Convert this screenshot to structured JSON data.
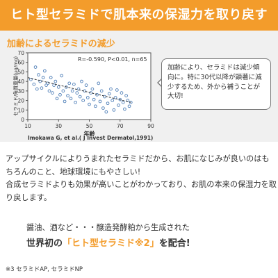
{
  "banner": {
    "title": "ヒト型セラミドで肌本来の保湿力を取り戻す"
  },
  "chart_section": {
    "title": "加齢によるセラミドの減少"
  },
  "chart_data": {
    "type": "scatter",
    "ylabel": "セラミド/角質重量(μg/mg)",
    "xlabel": "年齢",
    "x_ticks": [
      10,
      30,
      50,
      70,
      90
    ],
    "y_ticks": [
      0,
      10,
      20,
      30,
      40,
      50,
      60,
      70
    ],
    "xlim": [
      10,
      90
    ],
    "ylim": [
      0,
      70
    ],
    "stats": "R=-0.590, P<0.01, n=65",
    "citation": "Imokawa G, et al.( J Invest Dermatol,1991)",
    "trend": [
      [
        10,
        44
      ],
      [
        77,
        18
      ]
    ],
    "points": [
      [
        12,
        42
      ],
      [
        14,
        37
      ],
      [
        15,
        55
      ],
      [
        16,
        32
      ],
      [
        17,
        47
      ],
      [
        18,
        40
      ],
      [
        19,
        33
      ],
      [
        20,
        44
      ],
      [
        21,
        51
      ],
      [
        22,
        36
      ],
      [
        23,
        38
      ],
      [
        24,
        30
      ],
      [
        25,
        44
      ],
      [
        26,
        28
      ],
      [
        27,
        36
      ],
      [
        28,
        40
      ],
      [
        29,
        22
      ],
      [
        30,
        34
      ],
      [
        31,
        26
      ],
      [
        32,
        46
      ],
      [
        33,
        30
      ],
      [
        34,
        19
      ],
      [
        35,
        34
      ],
      [
        36,
        25
      ],
      [
        37,
        38
      ],
      [
        38,
        22
      ],
      [
        39,
        30
      ],
      [
        40,
        37
      ],
      [
        41,
        18
      ],
      [
        42,
        28
      ],
      [
        43,
        32
      ],
      [
        44,
        24
      ],
      [
        45,
        40
      ],
      [
        46,
        20
      ],
      [
        47,
        30
      ],
      [
        48,
        36
      ],
      [
        49,
        23
      ],
      [
        50,
        16
      ],
      [
        51,
        28
      ],
      [
        52,
        32
      ],
      [
        53,
        21
      ],
      [
        54,
        14
      ],
      [
        55,
        26
      ],
      [
        56,
        38
      ],
      [
        57,
        19
      ],
      [
        58,
        30
      ],
      [
        59,
        12
      ],
      [
        60,
        24
      ],
      [
        61,
        8
      ],
      [
        62,
        17
      ],
      [
        63,
        27
      ],
      [
        64,
        32
      ],
      [
        65,
        20
      ],
      [
        66,
        10
      ],
      [
        67,
        23
      ],
      [
        68,
        31
      ],
      [
        69,
        15
      ],
      [
        70,
        21
      ],
      [
        71,
        28
      ],
      [
        72,
        18
      ],
      [
        73,
        11
      ],
      [
        74,
        25
      ],
      [
        75,
        20
      ],
      [
        76,
        14
      ],
      [
        77,
        18
      ]
    ]
  },
  "bubble": {
    "text": "加齢により、セラミドは減少傾向に。特に30代以降が顕著に減少するため、外から補うことが大切!"
  },
  "body": {
    "paragraph1": "アップサイクルによりうまれたセラミドだから、お肌になじみが良いのはもちろんのこと、地球環境にもやさしい!",
    "paragraph2": "合成セラミドよりも効果が高いことがわかっており、お肌の本来の保湿力を取り戻します。"
  },
  "produced": {
    "text": "醤油、酒など・・・醸造発酵粕から生成された"
  },
  "world_first": {
    "prefix": "世界初の",
    "highlight": "「ヒト型セラミド※2」",
    "suffix": "を配合!"
  },
  "footnote": {
    "text": "※3 セラミドAP, セラミドNP"
  },
  "colors": {
    "accent": "#f39c2b",
    "panel": "#f0f0f0"
  }
}
